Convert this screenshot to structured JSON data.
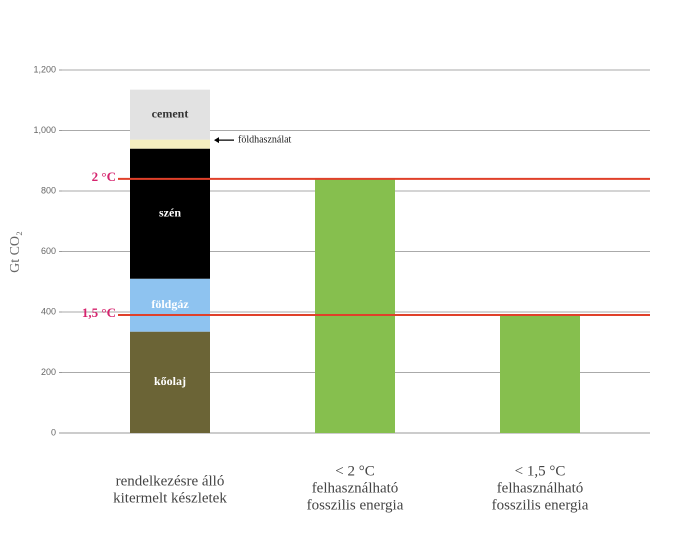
{
  "chart_data": {
    "type": "stacked_bar",
    "y_label": "Gt CO₂",
    "categories": [
      [
        "rendelkezésre álló",
        "kitermelt készletek"
      ],
      [
        "< 2 °C",
        "felhasználható",
        "fosszilis energia"
      ],
      [
        "< 1,5 °C",
        "felhasználható",
        "fosszilis energia"
      ]
    ],
    "series": [
      {
        "name": "kőolaj",
        "color": "#6b6436",
        "values": [
          335,
          null,
          null
        ]
      },
      {
        "name": "földgáz",
        "color": "#8ec3f0",
        "values": [
          175,
          null,
          null
        ]
      },
      {
        "name": "szén",
        "color": "#000000",
        "values": [
          430,
          null,
          null
        ]
      },
      {
        "name": "földhasználat",
        "color": "#f5efc0",
        "values": [
          30,
          null,
          null
        ]
      },
      {
        "name": "cement",
        "color": "#e2e2e2",
        "values": [
          165,
          null,
          null
        ]
      },
      {
        "color": "#86bf4e",
        "values": [
          null,
          840,
          390
        ]
      }
    ],
    "reference_lines": [
      {
        "label": "2 °C",
        "value": 840,
        "color": "#e0402a"
      },
      {
        "label": "1,5 °C",
        "value": 390,
        "color": "#e0402a"
      }
    ],
    "ylim": [
      0,
      1200
    ],
    "yticks": [
      0,
      200,
      400,
      600,
      800,
      {
        "value": 1000,
        "label": "1,000"
      },
      {
        "value": 1200,
        "label": "1,200"
      }
    ],
    "grid": true
  }
}
